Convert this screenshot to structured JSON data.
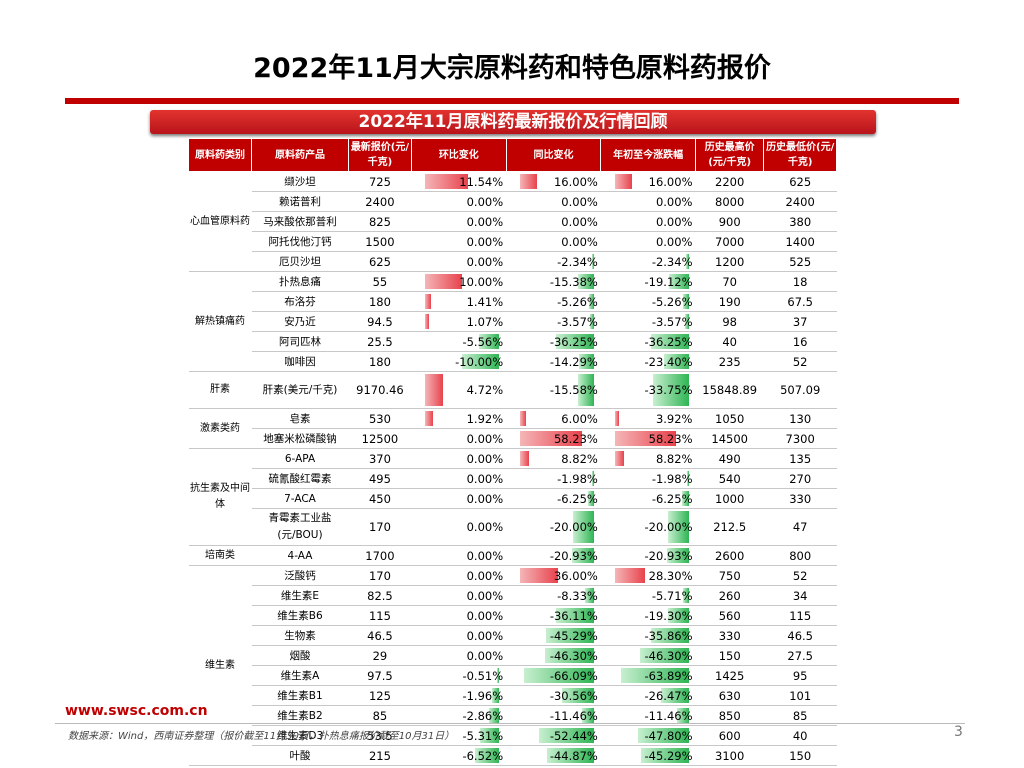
{
  "page": {
    "title": "2022年11月大宗原料药和特色原料药报价",
    "subtitle": "2022年11月原料药最新报价及行情回顾",
    "footer_url": "www.swsc.com.cn",
    "footer_source": "数据来源：Wind，西南证券整理（报价截至11月30日，扑热息痛报价截至10月31日）",
    "page_number": "3"
  },
  "colors": {
    "accent": "#c00000",
    "positive": "#e8424c",
    "negative": "#2fb554"
  },
  "table": {
    "headers": [
      "原料药类别",
      "原料药产品",
      "最新报价(元/千克)",
      "环比变化",
      "同比变化",
      "年初至今涨跌幅",
      "历史最高价(元/千克)",
      "历史最低价(元/千克)"
    ],
    "bar_scale": [
      20,
      70,
      70
    ],
    "groups": [
      {
        "category": "心血管原料药",
        "rows": [
          {
            "name": "缬沙坦",
            "price": "725",
            "changes": [
              11.54,
              16.0,
              16.0
            ],
            "labels": [
              "11.54%",
              "16.00%",
              "16.00%"
            ],
            "high": "2200",
            "low": "625"
          },
          {
            "name": "赖诺普利",
            "price": "2400",
            "changes": [
              0,
              0,
              0
            ],
            "labels": [
              "0.00%",
              "0.00%",
              "0.00%"
            ],
            "high": "8000",
            "low": "2400"
          },
          {
            "name": "马来酸依那普利",
            "price": "825",
            "changes": [
              0,
              0,
              0
            ],
            "labels": [
              "0.00%",
              "0.00%",
              "0.00%"
            ],
            "high": "900",
            "low": "380"
          },
          {
            "name": "阿托伐他汀钙",
            "price": "1500",
            "changes": [
              0,
              0,
              0
            ],
            "labels": [
              "0.00%",
              "0.00%",
              "0.00%"
            ],
            "high": "7000",
            "low": "1400"
          },
          {
            "name": "厄贝沙坦",
            "price": "625",
            "changes": [
              0,
              -2.34,
              -2.34
            ],
            "labels": [
              "0.00%",
              "-2.34%",
              "-2.34%"
            ],
            "high": "1200",
            "low": "525"
          }
        ]
      },
      {
        "category": "解热镇痛药",
        "rows": [
          {
            "name": "扑热息痛",
            "price": "55",
            "changes": [
              10.0,
              -15.38,
              -19.12
            ],
            "labels": [
              "10.00%",
              "-15.38%",
              "-19.12%"
            ],
            "high": "70",
            "low": "18"
          },
          {
            "name": "布洛芬",
            "price": "180",
            "changes": [
              1.41,
              -5.26,
              -5.26
            ],
            "labels": [
              "1.41%",
              "-5.26%",
              "-5.26%"
            ],
            "high": "190",
            "low": "67.5"
          },
          {
            "name": "安乃近",
            "price": "94.5",
            "changes": [
              1.07,
              -3.57,
              -3.57
            ],
            "labels": [
              "1.07%",
              "-3.57%",
              "-3.57%"
            ],
            "high": "98",
            "low": "37"
          },
          {
            "name": "阿司匹林",
            "price": "25.5",
            "changes": [
              -5.56,
              -36.25,
              -36.25
            ],
            "labels": [
              "-5.56%",
              "-36.25%",
              "-36.25%"
            ],
            "high": "40",
            "low": "16"
          },
          {
            "name": "咖啡因",
            "price": "180",
            "changes": [
              -10.0,
              -14.29,
              -23.4
            ],
            "labels": [
              "-10.00%",
              "-14.29%",
              "-23.40%"
            ],
            "high": "235",
            "low": "52"
          }
        ]
      },
      {
        "category": "肝素",
        "rows": [
          {
            "name": "肝素(美元/千克)",
            "price": "9170.46",
            "changes": [
              4.72,
              -15.58,
              -33.75
            ],
            "labels": [
              "4.72%",
              "-15.58%",
              "-33.75%"
            ],
            "high": "15848.89",
            "low": "507.09"
          }
        ]
      },
      {
        "category": "激素类药",
        "rows": [
          {
            "name": "皂素",
            "price": "530",
            "changes": [
              1.92,
              6.0,
              3.92
            ],
            "labels": [
              "1.92%",
              "6.00%",
              "3.92%"
            ],
            "high": "1050",
            "low": "130"
          },
          {
            "name": "地塞米松磷酸钠",
            "price": "12500",
            "changes": [
              0,
              58.23,
              58.23
            ],
            "labels": [
              "0.00%",
              "58.23%",
              "58.23%"
            ],
            "high": "14500",
            "low": "7300"
          }
        ]
      },
      {
        "category": "抗生素及中间体",
        "rows": [
          {
            "name": "6-APA",
            "price": "370",
            "changes": [
              0,
              8.82,
              8.82
            ],
            "labels": [
              "0.00%",
              "8.82%",
              "8.82%"
            ],
            "high": "490",
            "low": "135"
          },
          {
            "name": "硫氰酸红霉素",
            "price": "495",
            "changes": [
              0,
              -1.98,
              -1.98
            ],
            "labels": [
              "0.00%",
              "-1.98%",
              "-1.98%"
            ],
            "high": "540",
            "low": "270"
          },
          {
            "name": "7-ACA",
            "price": "450",
            "changes": [
              0,
              -6.25,
              -6.25
            ],
            "labels": [
              "0.00%",
              "-6.25%",
              "-6.25%"
            ],
            "high": "1000",
            "low": "330"
          },
          {
            "name": "青霉素工业盐(元/BOU)",
            "price": "170",
            "changes": [
              0,
              -20.0,
              -20.0
            ],
            "labels": [
              "0.00%",
              "-20.00%",
              "-20.00%"
            ],
            "high": "212.5",
            "low": "47"
          }
        ]
      },
      {
        "category": "培南类",
        "rows": [
          {
            "name": "4-AA",
            "price": "1700",
            "changes": [
              0,
              -20.93,
              -20.93
            ],
            "labels": [
              "0.00%",
              "-20.93%",
              "-20.93%"
            ],
            "high": "2600",
            "low": "800"
          }
        ]
      },
      {
        "category": "维生素",
        "rows": [
          {
            "name": "泛酸钙",
            "price": "170",
            "changes": [
              0,
              36.0,
              28.3
            ],
            "labels": [
              "0.00%",
              "36.00%",
              "28.30%"
            ],
            "high": "750",
            "low": "52"
          },
          {
            "name": "维生素E",
            "price": "82.5",
            "changes": [
              0,
              -8.33,
              -5.71
            ],
            "labels": [
              "0.00%",
              "-8.33%",
              "-5.71%"
            ],
            "high": "260",
            "low": "34"
          },
          {
            "name": "维生素B6",
            "price": "115",
            "changes": [
              0,
              -36.11,
              -19.3
            ],
            "labels": [
              "0.00%",
              "-36.11%",
              "-19.30%"
            ],
            "high": "560",
            "low": "115"
          },
          {
            "name": "生物素",
            "price": "46.5",
            "changes": [
              0,
              -45.29,
              -35.86
            ],
            "labels": [
              "0.00%",
              "-45.29%",
              "-35.86%"
            ],
            "high": "330",
            "low": "46.5"
          },
          {
            "name": "烟酸",
            "price": "29",
            "changes": [
              0,
              -46.3,
              -46.3
            ],
            "labels": [
              "0.00%",
              "-46.30%",
              "-46.30%"
            ],
            "high": "150",
            "low": "27.5"
          },
          {
            "name": "维生素A",
            "price": "97.5",
            "changes": [
              -0.51,
              -66.09,
              -63.89
            ],
            "labels": [
              "-0.51%",
              "-66.09%",
              "-63.89%"
            ],
            "high": "1425",
            "low": "95"
          },
          {
            "name": "维生素B1",
            "price": "125",
            "changes": [
              -1.96,
              -30.56,
              -26.47
            ],
            "labels": [
              "-1.96%",
              "-30.56%",
              "-26.47%"
            ],
            "high": "630",
            "low": "101"
          },
          {
            "name": "维生素B2",
            "price": "85",
            "changes": [
              -2.86,
              -11.46,
              -11.46
            ],
            "labels": [
              "-2.86%",
              "-11.46%",
              "-11.46%"
            ],
            "high": "850",
            "low": "85"
          },
          {
            "name": "维生素D3",
            "price": "53.5",
            "changes": [
              -5.31,
              -52.44,
              -47.8
            ],
            "labels": [
              "-5.31%",
              "-52.44%",
              "-47.80%"
            ],
            "high": "600",
            "low": "40"
          },
          {
            "name": "叶酸",
            "price": "215",
            "changes": [
              -6.52,
              -44.87,
              -45.29
            ],
            "labels": [
              "-6.52%",
              "-44.87%",
              "-45.29%"
            ],
            "high": "3100",
            "low": "150"
          }
        ]
      }
    ]
  }
}
